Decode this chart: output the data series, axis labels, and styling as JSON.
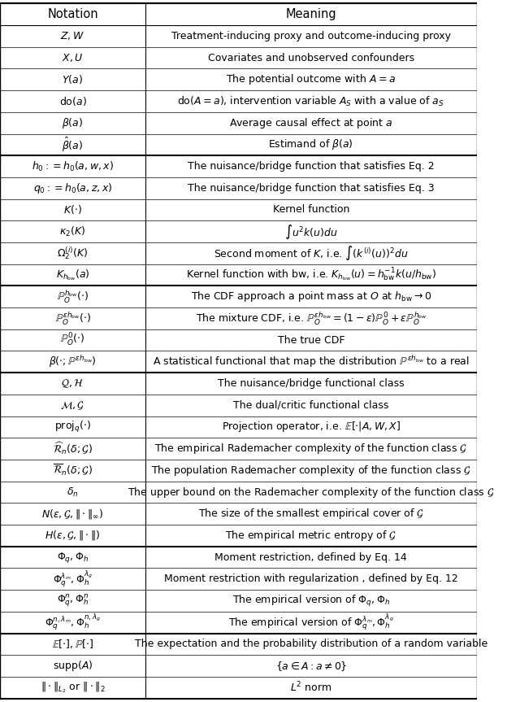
{
  "title_row": [
    "Notation",
    "Meaning"
  ],
  "sections": [
    {
      "rows": [
        [
          "$Z, W$",
          "Treatment-inducing proxy and outcome-inducing proxy"
        ],
        [
          "$X, U$",
          "Covariates and unobserved confounders"
        ],
        [
          "$Y(a)$",
          "The potential outcome with $A = a$"
        ],
        [
          "$\\mathrm{do}(a)$",
          "$\\mathrm{do}(A = a)$, intervention variable $A_S$ with a value of $a_S$"
        ],
        [
          "$\\beta(a)$",
          "Average causal effect at point $a$"
        ],
        [
          "$\\hat{\\beta}(a)$",
          "Estimand of $\\beta(a)$"
        ]
      ],
      "thick_bottom": true
    },
    {
      "rows": [
        [
          "$h_0 := h_0(a, w, x)$",
          "The nuisance/bridge function that satisfies Eq. 2"
        ],
        [
          "$q_0 := h_0(a, z, x)$",
          "The nuisance/bridge function that satisfies Eq. 3"
        ],
        [
          "$K(\\cdot)$",
          "Kernel function"
        ],
        [
          "$\\kappa_2(K)$",
          "$\\int u^2 k(u) du$"
        ],
        [
          "$\\Omega_2^{(i)}(K)$",
          "Second moment of $K$, i.e. $\\int (k^{(i)}(u))^2 du$"
        ],
        [
          "$K_{h_{\\mathrm{bw}}}(a)$",
          "Kernel function with bw, i.e. $K_{h_{\\mathrm{bw}}}(u) = h_{\\mathrm{bw}}^{-1} k(u/h_{\\mathrm{bw}})$"
        ]
      ],
      "thick_bottom": true
    },
    {
      "rows": [
        [
          "$\\mathbb{P}_O^{h_{\\mathrm{bw}}}(\\cdot)$",
          "The CDF approach a point mass at $O$ at $h_{\\mathrm{bw}} \\to 0$"
        ],
        [
          "$\\mathbb{P}_O^{\\varepsilon h_{\\mathrm{bw}}}(\\cdot)$",
          "The mixture CDF, i.e. $\\mathbb{P}_O^{\\varepsilon h_{\\mathrm{bw}}} = (1-\\varepsilon)\\mathbb{P}_O^0 + \\varepsilon\\mathbb{P}_O^{h_{\\mathrm{bw}}}$"
        ],
        [
          "$\\mathbb{P}_O^0(\\cdot)$",
          "The true CDF"
        ],
        [
          "$\\beta(\\cdot; \\mathbb{P}^{\\varepsilon h_{\\mathrm{bw}}})$",
          "A statistical functional that map the distribution $\\mathbb{P}^{\\varepsilon h_{\\mathrm{bw}}}$ to a real"
        ]
      ],
      "thick_bottom": true
    },
    {
      "rows": [
        [
          "$\\mathcal{Q}, \\mathcal{H}$",
          "The nuisance/bridge functional class"
        ],
        [
          "$\\mathcal{M}, \\mathcal{G}$",
          "The dual/critic functional class"
        ],
        [
          "$\\mathrm{proj}_q(\\cdot)$",
          "Projection operator, i.e. $\\mathbb{E}[\\cdot | A, W, X]$"
        ],
        [
          "$\\widehat{\\mathcal{R}}_n(\\delta; \\mathcal{G})$",
          "The empirical Rademacher complexity of the function class $\\mathcal{G}$"
        ],
        [
          "$\\overline{\\mathcal{R}}_n(\\delta; \\mathcal{G})$",
          "The population Rademacher complexity of the function class $\\mathcal{G}$"
        ],
        [
          "$\\delta_n$",
          "The upper bound on the Rademacher complexity of the function class $\\mathcal{G}$"
        ],
        [
          "$N(\\varepsilon, \\mathcal{G}, \\|\\cdot\\|_{\\infty})$",
          "The size of the smallest empirical cover of $\\mathcal{G}$"
        ],
        [
          "$H(\\varepsilon, \\mathcal{G}, \\|\\cdot\\|)$",
          "The empirical metric entropy of $\\mathcal{G}$"
        ]
      ],
      "thick_bottom": true
    },
    {
      "rows": [
        [
          "$\\Phi_q, \\Phi_h$",
          "Moment restriction, defined by Eq. 14"
        ],
        [
          "$\\Phi_q^{\\lambda_m}, \\Phi_h^{\\lambda_g}$",
          "Moment restriction with regularization , defined by Eq. 12"
        ],
        [
          "$\\Phi_q^n, \\Phi_h^n$",
          "The empirical version of $\\Phi_q, \\Phi_h$"
        ],
        [
          "$\\Phi_q^{n,\\lambda_m}, \\Phi_h^{n,\\lambda_g}$",
          "The empirical version of $\\Phi_q^{\\lambda_m}, \\Phi_h^{\\lambda_g}$"
        ]
      ],
      "thick_bottom": true
    },
    {
      "rows": [
        [
          "$\\mathbb{E}[\\cdot], \\mathbb{P}[\\cdot]$",
          "The expectation and the probability distribution of a random variable"
        ],
        [
          "$\\mathrm{supp}(A)$",
          "$\\{a \\in A : a \\neq 0\\}$"
        ],
        [
          "$\\|\\cdot\\|_{L_2}$ or $\\|\\cdot\\|_2$",
          "$L^2$ norm"
        ]
      ],
      "thick_bottom": false
    }
  ],
  "col_split": 0.305,
  "bg_color": "white",
  "line_color": "black",
  "font_size": 9.0,
  "header_font_size": 10.5
}
